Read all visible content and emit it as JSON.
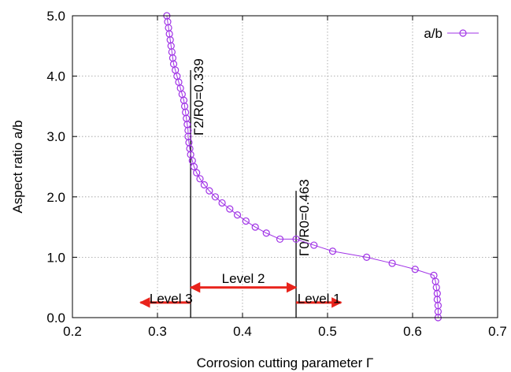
{
  "chart_data": {
    "type": "line",
    "xlabel": "Corrosion cutting parameter Γ",
    "ylabel": "Aspect ratio a/b",
    "xlim": [
      0.2,
      0.7
    ],
    "ylim": [
      0.0,
      5.0
    ],
    "xticks": [
      "0.2",
      "0.3",
      "0.4",
      "0.5",
      "0.6",
      "0.7"
    ],
    "yticks": [
      "0.0",
      "1.0",
      "2.0",
      "3.0",
      "4.0",
      "5.0"
    ],
    "grid": true,
    "legend_position": "top-right",
    "series_color": "#a033e6",
    "marker": "open-circle",
    "series": [
      {
        "name": "a/b",
        "points": [
          [
            0.311,
            5.0
          ],
          [
            0.312,
            4.9
          ],
          [
            0.313,
            4.8
          ],
          [
            0.314,
            4.7
          ],
          [
            0.315,
            4.6
          ],
          [
            0.316,
            4.5
          ],
          [
            0.317,
            4.4
          ],
          [
            0.318,
            4.3
          ],
          [
            0.319,
            4.2
          ],
          [
            0.321,
            4.1
          ],
          [
            0.323,
            4.0
          ],
          [
            0.325,
            3.9
          ],
          [
            0.327,
            3.8
          ],
          [
            0.329,
            3.7
          ],
          [
            0.331,
            3.6
          ],
          [
            0.332,
            3.5
          ],
          [
            0.333,
            3.4
          ],
          [
            0.334,
            3.3
          ],
          [
            0.335,
            3.2
          ],
          [
            0.336,
            3.1
          ],
          [
            0.336,
            3.0
          ],
          [
            0.337,
            2.9
          ],
          [
            0.338,
            2.8
          ],
          [
            0.339,
            2.7
          ],
          [
            0.341,
            2.6
          ],
          [
            0.343,
            2.5
          ],
          [
            0.346,
            2.4
          ],
          [
            0.35,
            2.3
          ],
          [
            0.355,
            2.2
          ],
          [
            0.361,
            2.1
          ],
          [
            0.368,
            2.0
          ],
          [
            0.376,
            1.9
          ],
          [
            0.385,
            1.8
          ],
          [
            0.394,
            1.7
          ],
          [
            0.404,
            1.6
          ],
          [
            0.415,
            1.5
          ],
          [
            0.428,
            1.4
          ],
          [
            0.444,
            1.3
          ],
          [
            0.463,
            1.3
          ],
          [
            0.484,
            1.2
          ],
          [
            0.506,
            1.1
          ],
          [
            0.546,
            1.0
          ],
          [
            0.576,
            0.9
          ],
          [
            0.603,
            0.8
          ],
          [
            0.625,
            0.7
          ],
          [
            0.627,
            0.6
          ],
          [
            0.628,
            0.5
          ],
          [
            0.629,
            0.4
          ],
          [
            0.629,
            0.3
          ],
          [
            0.63,
            0.2
          ],
          [
            0.63,
            0.1
          ],
          [
            0.63,
            0.0
          ]
        ]
      }
    ],
    "vlines": [
      {
        "x": 0.339,
        "y_top": 4.1,
        "label": "Γ2/R0=0.339"
      },
      {
        "x": 0.463,
        "y_top": 2.1,
        "label": "Γ0/R0=0.463"
      }
    ],
    "annotations": [
      {
        "label": "Level 3",
        "x": 0.316,
        "y": 0.32
      },
      {
        "label": "Level 2",
        "x": 0.401,
        "y": 0.65
      },
      {
        "label": "Level 1",
        "x": 0.49,
        "y": 0.32
      }
    ],
    "arrows": [
      {
        "from": [
          0.339,
          0.25
        ],
        "to": [
          0.28,
          0.25
        ]
      },
      {
        "from": [
          0.339,
          0.5
        ],
        "to": [
          0.463,
          0.5
        ]
      },
      {
        "from": [
          0.463,
          0.25
        ],
        "to": [
          0.516,
          0.25
        ]
      }
    ],
    "arrow_color": "#e8231b"
  }
}
